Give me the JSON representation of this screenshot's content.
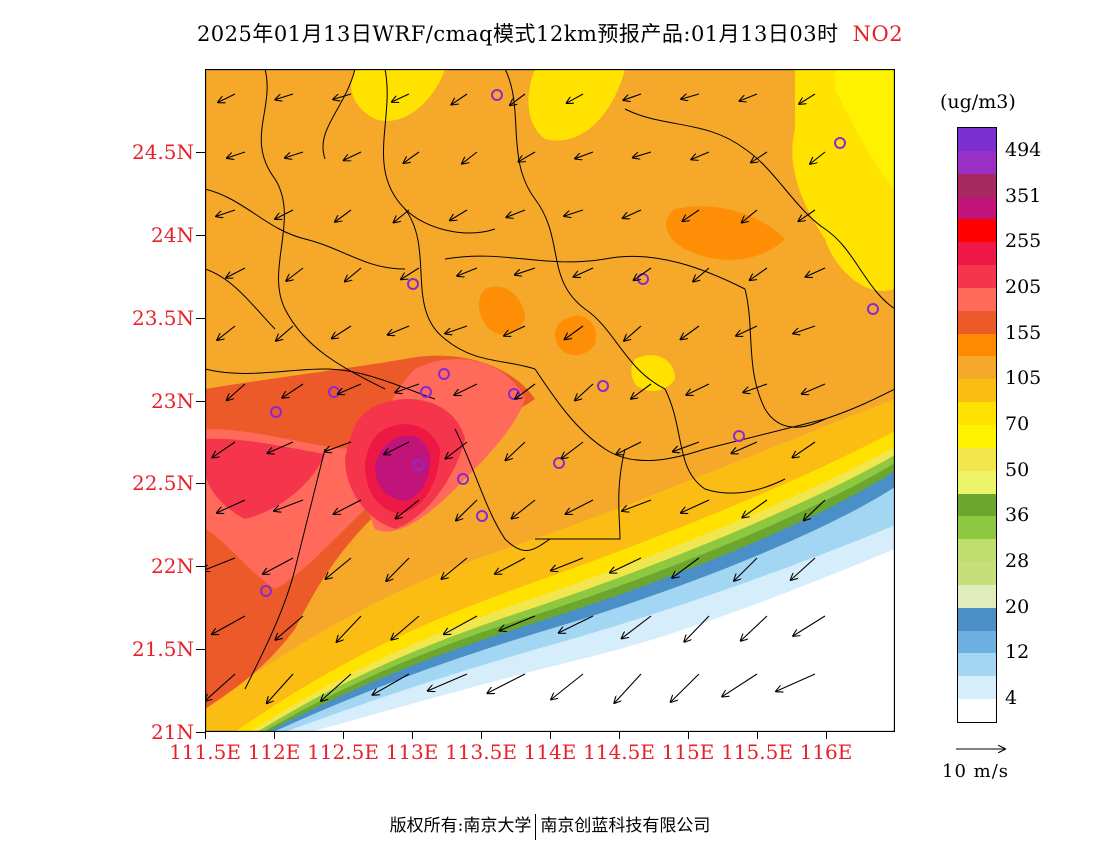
{
  "title": {
    "main": "2025年01月13日WRF/cmaq模式12km预报产品:01月13日03时",
    "species": "NO2"
  },
  "map": {
    "lat_labels": [
      "24.5N",
      "24N",
      "23.5N",
      "23N",
      "22.5N",
      "22N",
      "21.5N",
      "21N"
    ],
    "lon_labels": [
      "111.5E",
      "112E",
      "112.5E",
      "113E",
      "113.5E",
      "114E",
      "114.5E",
      "115E",
      "115.5E",
      "116E"
    ],
    "lat_range": [
      21.0,
      25.0
    ],
    "lon_range": [
      111.5,
      116.5
    ],
    "wind_unit_label": "10 m/s"
  },
  "colorbar": {
    "unit": "(ug/m3)",
    "labels": [
      "494",
      "351",
      "255",
      "205",
      "155",
      "105",
      "70",
      "50",
      "36",
      "28",
      "20",
      "12",
      "4"
    ],
    "colors": [
      "#7b2fd0",
      "#9a2fc6",
      "#a8295f",
      "#c0147a",
      "#ff0000",
      "#ee1844",
      "#f5354c",
      "#ff6a5a",
      "#ec5a2a",
      "#ff8a00",
      "#f5a82a",
      "#fbbc14",
      "#ffe200",
      "#fff200",
      "#f1e64e",
      "#eef46a",
      "#6ca62e",
      "#8ec840",
      "#c0de6e",
      "#c6df78",
      "#e0ecbc",
      "#4b8fc8",
      "#6fb0e2",
      "#a3d6f2",
      "#d6eefb",
      "#ffffff"
    ]
  },
  "footer": {
    "left": "版权所有:南京大学",
    "right": "南京创蓝科技有限公司"
  }
}
